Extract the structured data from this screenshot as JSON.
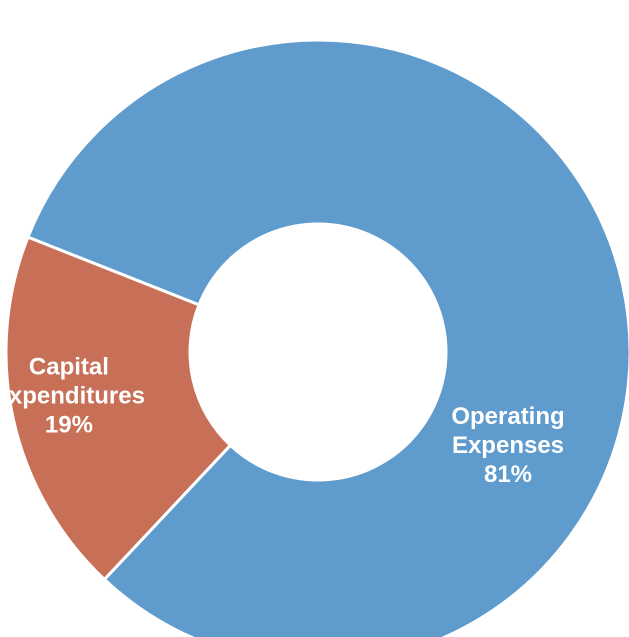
{
  "chart_data": {
    "type": "pie",
    "style": "donut",
    "slices": [
      {
        "name": "Operating Expenses",
        "label_lines": [
          "Operating",
          "Expenses"
        ],
        "value": 81,
        "display": "81%",
        "color": "#5f9bcc"
      },
      {
        "name": "Capital Expenditures",
        "label_lines": [
          "Capital",
          "Expenditures"
        ],
        "value": 19,
        "display": "19%",
        "color": "#c86f58"
      }
    ],
    "legend": "none",
    "separator_color": "#ffffff",
    "label_color": "#ffffff"
  }
}
